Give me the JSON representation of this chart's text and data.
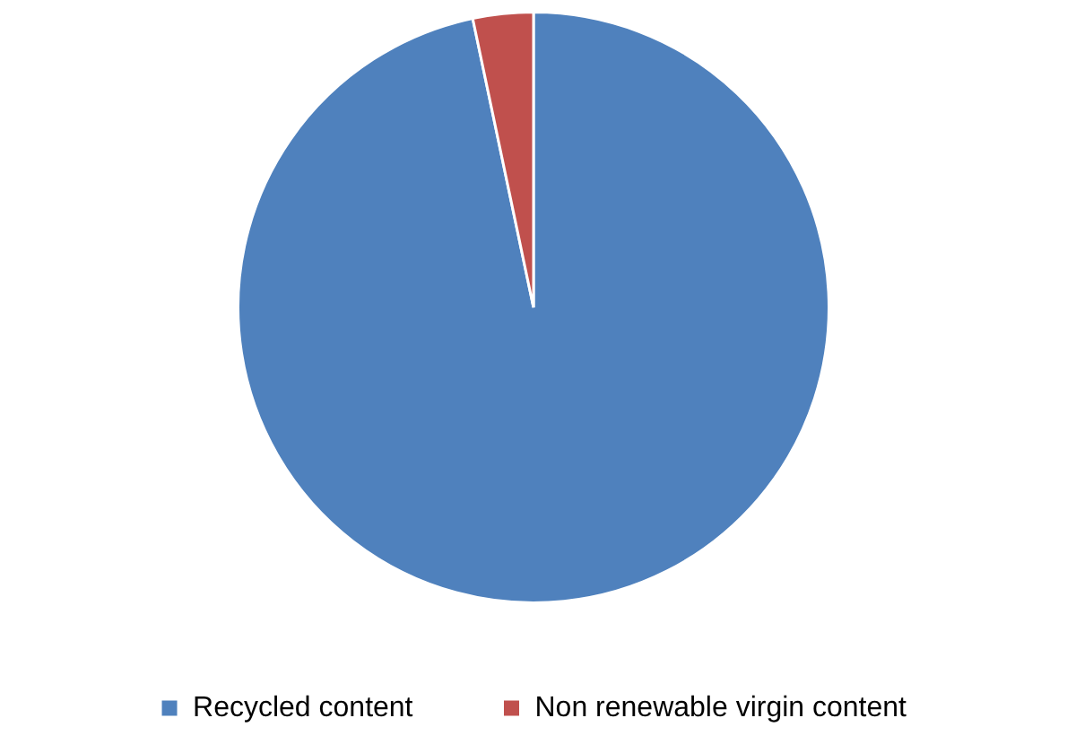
{
  "chart_data": {
    "type": "pie",
    "categories": [
      "Recycled content",
      "Non renewable virgin content"
    ],
    "values": [
      96.7,
      3.3
    ],
    "colors": [
      "#4f81bd",
      "#c0504d"
    ],
    "legend": "bottom"
  }
}
